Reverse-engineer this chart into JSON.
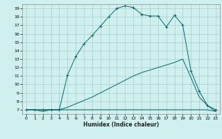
{
  "title": "",
  "xlabel": "Humidex (Indice chaleur)",
  "bg_color": "#cff0ee",
  "grid_color": "#aacccc",
  "line_color": "#006666",
  "xlim": [
    -0.5,
    23.5
  ],
  "ylim": [
    6.5,
    19.5
  ],
  "xticks": [
    0,
    1,
    2,
    3,
    4,
    5,
    6,
    7,
    8,
    9,
    10,
    11,
    12,
    13,
    14,
    15,
    16,
    17,
    18,
    19,
    20,
    21,
    22,
    23
  ],
  "yticks": [
    7,
    8,
    9,
    10,
    11,
    12,
    13,
    14,
    15,
    16,
    17,
    18,
    19
  ],
  "line1_x": [
    0,
    1,
    2,
    3,
    4,
    5,
    6,
    7,
    8,
    9,
    10,
    11,
    12,
    13,
    14,
    15,
    16,
    17,
    18,
    19,
    20,
    21,
    22,
    23
  ],
  "line1_y": [
    7,
    7,
    6.8,
    7,
    7,
    7,
    7,
    7,
    7,
    7,
    7,
    7,
    7,
    7,
    7,
    7,
    7,
    7,
    7,
    7,
    7,
    7,
    7,
    6.8
  ],
  "line2_x": [
    0,
    1,
    2,
    3,
    4,
    5,
    6,
    7,
    8,
    9,
    10,
    11,
    12,
    13,
    14,
    15,
    16,
    17,
    18,
    19,
    20,
    21,
    22,
    23
  ],
  "line2_y": [
    7,
    7,
    7,
    7,
    7,
    7.3,
    7.7,
    8.1,
    8.5,
    9.0,
    9.5,
    10.0,
    10.5,
    11.0,
    11.4,
    11.7,
    12.0,
    12.3,
    12.6,
    13.0,
    10.8,
    8.5,
    7.5,
    6.8
  ],
  "line3_x": [
    0,
    1,
    2,
    3,
    4,
    5,
    6,
    7,
    8,
    9,
    10,
    11,
    12,
    13,
    14,
    15,
    16,
    17,
    18,
    19,
    20,
    21,
    22,
    23
  ],
  "line3_y": [
    7,
    7,
    7,
    7,
    7,
    11.1,
    13.3,
    14.8,
    15.8,
    16.9,
    18.0,
    19.0,
    19.3,
    19.1,
    18.3,
    18.1,
    18.1,
    16.8,
    18.2,
    17.0,
    11.6,
    9.2,
    7.5,
    7.0
  ]
}
